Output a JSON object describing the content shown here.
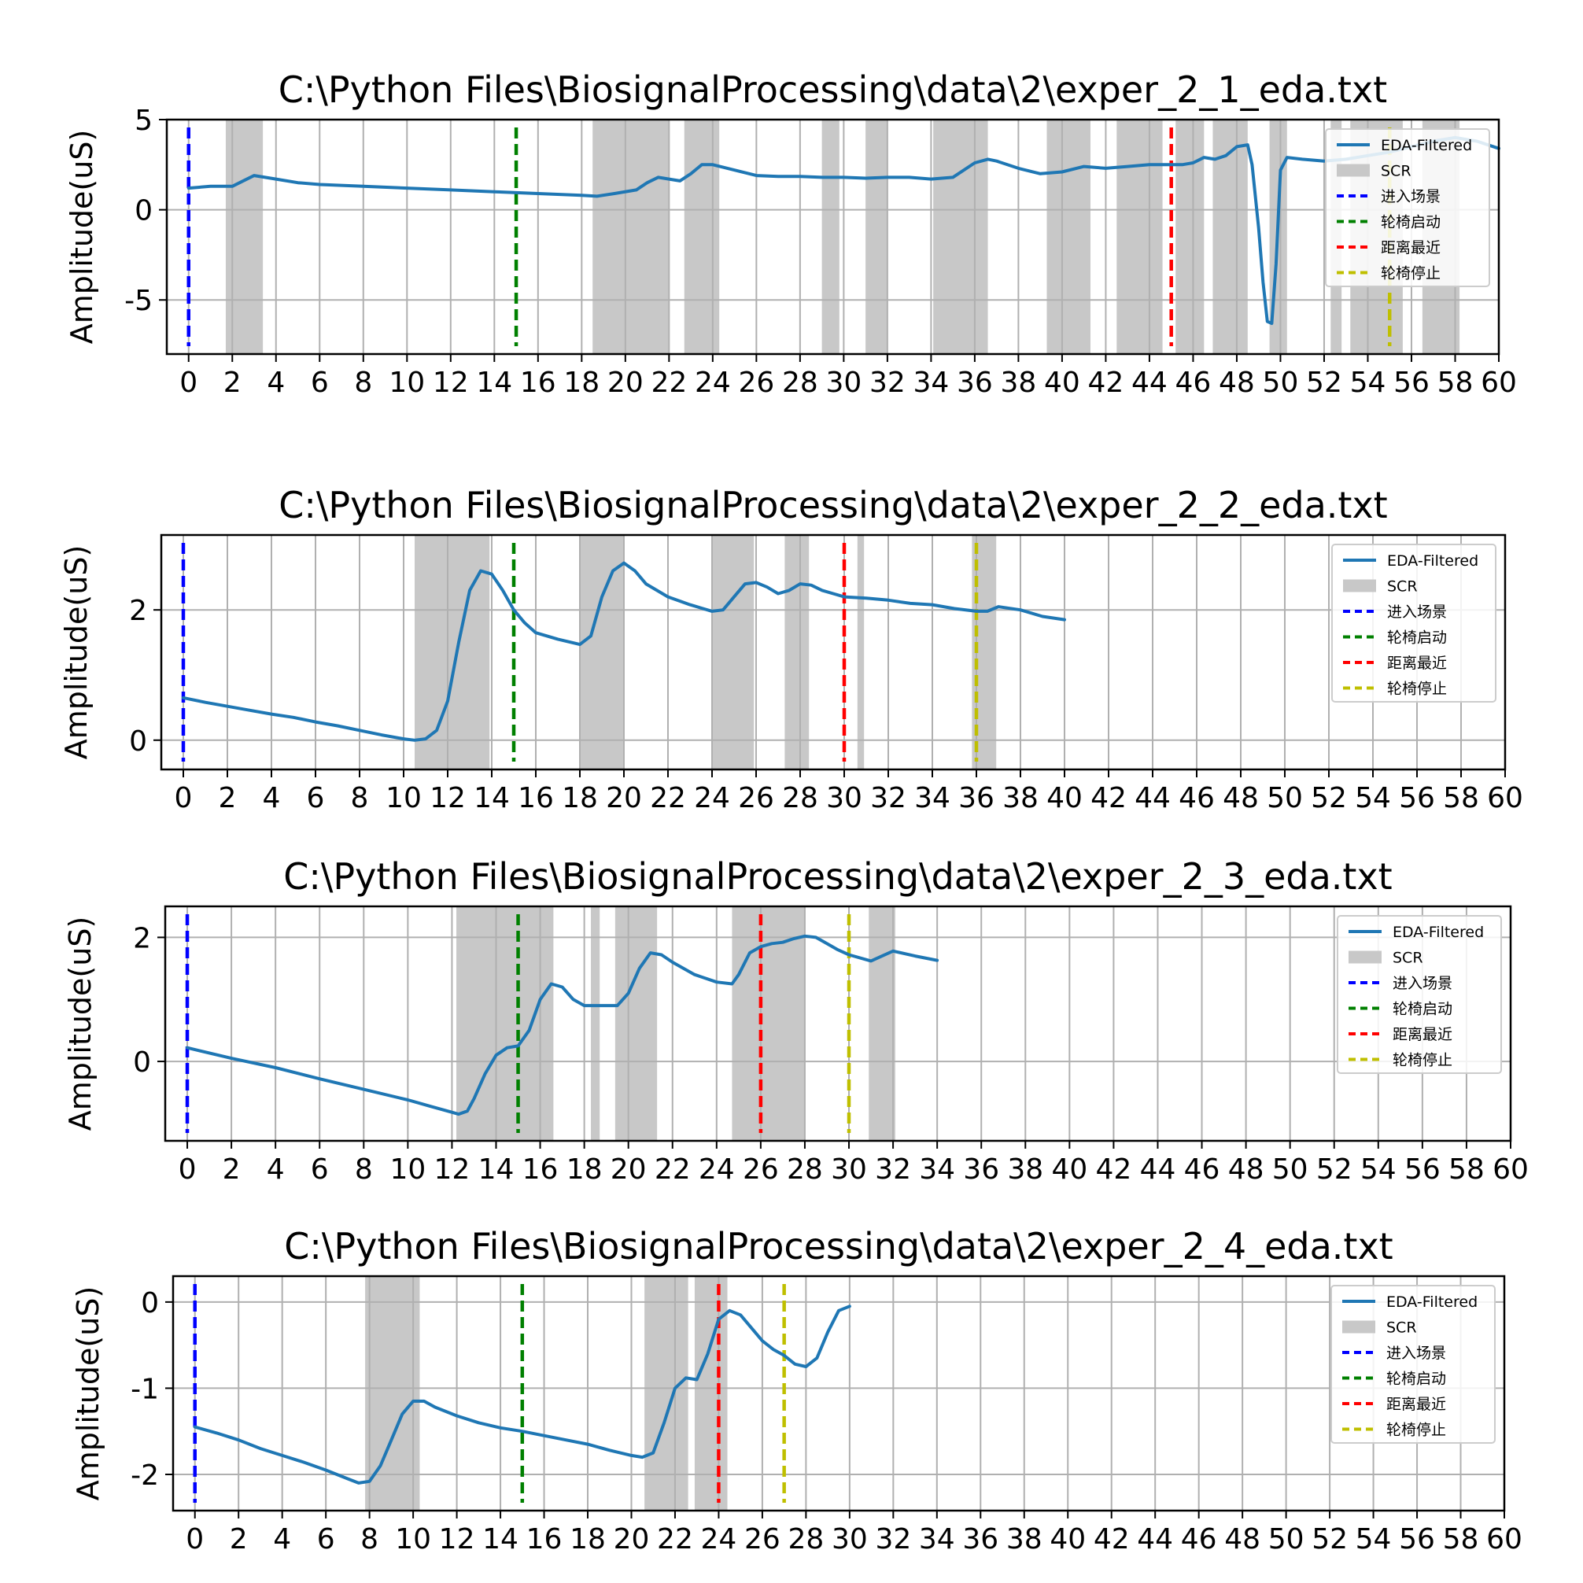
{
  "colors": {
    "eda": "#1f77b4",
    "scr": "#c8c8c8",
    "enter": "#0000ff",
    "start": "#008000",
    "nearest": "#ff0000",
    "stop": "#bfbf00",
    "grid": "#b0b0b0"
  },
  "legend_labels": [
    "EDA-Filtered",
    "SCR",
    "进入场景",
    "轮椅启动",
    "距离最近",
    "轮椅停止"
  ],
  "chart_data": [
    {
      "type": "line",
      "title": "C:\\Python Files\\BiosignalProcessing\\data\\2\\exper_2_1_eda.txt",
      "ylabel": "Amplitude(uS)",
      "xlim": [
        -1,
        60
      ],
      "ylim": [
        -8,
        5
      ],
      "xticks": [
        0,
        2,
        4,
        6,
        8,
        10,
        12,
        14,
        16,
        18,
        20,
        22,
        24,
        26,
        28,
        30,
        32,
        34,
        36,
        38,
        40,
        42,
        44,
        46,
        48,
        50,
        52,
        54,
        56,
        58,
        60
      ],
      "xtick_labels": [
        "0",
        "2",
        "4",
        "6",
        "8",
        "10",
        "12",
        "14",
        "16",
        "18",
        "20",
        "22",
        "24",
        "26",
        "28",
        "30",
        "32",
        "34",
        "36",
        "38",
        "40",
        "42",
        "44",
        "46",
        "48",
        "50",
        "52",
        "54",
        "56",
        "58",
        "60"
      ],
      "yticks": [
        5,
        0,
        -5
      ],
      "ytick_labels": [
        "5",
        "0",
        "-5"
      ],
      "grid": true,
      "legend_position": "top-right",
      "scr_regions": [
        [
          1.7,
          3.4
        ],
        [
          18.5,
          22
        ],
        [
          22.7,
          24.3
        ],
        [
          29,
          29.8
        ],
        [
          31,
          32
        ],
        [
          34.1,
          36.6
        ],
        [
          39.3,
          41.3
        ],
        [
          42.5,
          44.6
        ],
        [
          45.2,
          46.5
        ],
        [
          46.9,
          48.5
        ],
        [
          49.5,
          50.3
        ],
        [
          52.3,
          52.8
        ],
        [
          53.2,
          55.6
        ],
        [
          56.5,
          58.2
        ]
      ],
      "events": [
        {
          "label": "进入场景",
          "x": 0
        },
        {
          "label": "轮椅启动",
          "x": 15
        },
        {
          "label": "距离最近",
          "x": 45
        },
        {
          "label": "轮椅停止",
          "x": 55
        }
      ],
      "series": [
        {
          "name": "EDA-Filtered",
          "x": [
            0,
            1,
            2,
            2.5,
            3,
            3.5,
            4,
            5,
            6,
            8,
            10,
            12,
            14,
            16,
            18,
            18.7,
            19.5,
            20.5,
            21,
            21.5,
            22,
            22.5,
            23,
            23.5,
            24,
            25,
            26,
            27,
            28,
            29,
            30,
            31,
            32,
            33,
            34,
            35,
            36,
            36.6,
            37,
            38,
            39,
            40,
            41,
            42,
            43,
            44,
            45,
            45.5,
            46,
            46.5,
            47,
            47.5,
            48,
            48.5,
            48.7,
            49,
            49.2,
            49.4,
            49.6,
            49.8,
            50,
            50.3,
            51,
            52,
            53,
            54,
            55,
            56,
            57,
            58,
            59,
            60
          ],
          "y": [
            1.2,
            1.3,
            1.3,
            1.6,
            1.9,
            1.8,
            1.7,
            1.5,
            1.4,
            1.3,
            1.2,
            1.1,
            1.0,
            0.9,
            0.8,
            0.75,
            0.9,
            1.1,
            1.5,
            1.8,
            1.7,
            1.6,
            2.0,
            2.5,
            2.5,
            2.2,
            1.9,
            1.85,
            1.85,
            1.8,
            1.8,
            1.75,
            1.8,
            1.8,
            1.7,
            1.8,
            2.6,
            2.8,
            2.7,
            2.3,
            2.0,
            2.1,
            2.4,
            2.3,
            2.4,
            2.5,
            2.5,
            2.5,
            2.6,
            2.9,
            2.8,
            3.0,
            3.5,
            3.6,
            2.5,
            -1.0,
            -4.0,
            -6.2,
            -6.3,
            -3.0,
            2.2,
            2.9,
            2.8,
            2.7,
            2.8,
            3.0,
            3.2,
            3.5,
            3.8,
            4.0,
            3.8,
            3.4
          ]
        }
      ]
    },
    {
      "type": "line",
      "title": "C:\\Python Files\\BiosignalProcessing\\data\\2\\exper_2_2_eda.txt",
      "ylabel": "Amplitude(uS)",
      "xlim": [
        -1,
        60
      ],
      "ylim": [
        -0.45,
        3.15
      ],
      "xticks": [
        0,
        2,
        4,
        6,
        8,
        10,
        12,
        14,
        16,
        18,
        20,
        22,
        24,
        26,
        28,
        30,
        32,
        34,
        36,
        38,
        40,
        42,
        44,
        46,
        48,
        50,
        52,
        54,
        56,
        58,
        60
      ],
      "xtick_labels": [
        "0",
        "2",
        "4",
        "6",
        "8",
        "10",
        "12",
        "14",
        "16",
        "18",
        "20",
        "22",
        "24",
        "26",
        "28",
        "30",
        "32",
        "34",
        "36",
        "38",
        "40",
        "42",
        "44",
        "46",
        "48",
        "50",
        "52",
        "54",
        "56",
        "58",
        "60"
      ],
      "yticks": [
        2,
        0
      ],
      "ytick_labels": [
        "2",
        "0"
      ],
      "grid": true,
      "legend_position": "top-right",
      "scr_regions": [
        [
          10.5,
          13.9
        ],
        [
          18,
          20
        ],
        [
          24,
          25.9
        ],
        [
          27.3,
          28.4
        ],
        [
          30.6,
          30.9
        ],
        [
          35.8,
          36.9
        ]
      ],
      "events": [
        {
          "label": "进入场景",
          "x": 0
        },
        {
          "label": "轮椅启动",
          "x": 15
        },
        {
          "label": "距离最近",
          "x": 30
        },
        {
          "label": "轮椅停止",
          "x": 36
        }
      ],
      "series": [
        {
          "name": "EDA-Filtered",
          "x": [
            0,
            1,
            2,
            3,
            4,
            5,
            6,
            7,
            8,
            9,
            10,
            10.5,
            11,
            11.5,
            12,
            12.5,
            13,
            13.5,
            14,
            14.5,
            15,
            15.5,
            16,
            17,
            18,
            18.5,
            19,
            19.5,
            20,
            20.5,
            21,
            22,
            23,
            24,
            24.5,
            25,
            25.5,
            26,
            26.5,
            27,
            27.5,
            28,
            28.5,
            29,
            29.5,
            30,
            31,
            32,
            33,
            34,
            35,
            36,
            36.5,
            37,
            38,
            39,
            40
          ],
          "y": [
            0.65,
            0.58,
            0.52,
            0.46,
            0.4,
            0.35,
            0.28,
            0.22,
            0.15,
            0.08,
            0.02,
            0.0,
            0.02,
            0.15,
            0.6,
            1.5,
            2.3,
            2.6,
            2.55,
            2.3,
            2.0,
            1.8,
            1.65,
            1.55,
            1.47,
            1.6,
            2.2,
            2.6,
            2.72,
            2.6,
            2.4,
            2.2,
            2.08,
            1.98,
            2.0,
            2.2,
            2.4,
            2.42,
            2.35,
            2.25,
            2.3,
            2.4,
            2.38,
            2.3,
            2.25,
            2.2,
            2.18,
            2.15,
            2.1,
            2.08,
            2.02,
            1.98,
            1.98,
            2.05,
            2.0,
            1.9,
            1.85
          ]
        }
      ]
    },
    {
      "type": "line",
      "title": "C:\\Python Files\\BiosignalProcessing\\data\\2\\exper_2_3_eda.txt",
      "ylabel": "Amplitude(uS)",
      "xlim": [
        -1,
        60
      ],
      "ylim": [
        -1.28,
        2.5
      ],
      "xticks": [
        0,
        2,
        4,
        6,
        8,
        10,
        12,
        14,
        16,
        18,
        20,
        22,
        24,
        26,
        28,
        30,
        32,
        34,
        36,
        38,
        40,
        42,
        44,
        46,
        48,
        50,
        52,
        54,
        56,
        58,
        60
      ],
      "xtick_labels": [
        "0",
        "2",
        "4",
        "6",
        "8",
        "10",
        "12",
        "14",
        "16",
        "18",
        "20",
        "22",
        "24",
        "26",
        "28",
        "30",
        "32",
        "34",
        "36",
        "38",
        "40",
        "42",
        "44",
        "46",
        "48",
        "50",
        "52",
        "54",
        "56",
        "58",
        "60"
      ],
      "yticks": [
        2,
        0
      ],
      "ytick_labels": [
        "2",
        "0"
      ],
      "grid": true,
      "legend_position": "top-right",
      "scr_regions": [
        [
          12.2,
          16.6
        ],
        [
          18.3,
          18.7
        ],
        [
          19.4,
          21.3
        ],
        [
          24.7,
          28
        ],
        [
          30.9,
          32.1
        ]
      ],
      "events": [
        {
          "label": "进入场景",
          "x": 0
        },
        {
          "label": "轮椅启动",
          "x": 15
        },
        {
          "label": "距离最近",
          "x": 26
        },
        {
          "label": "轮椅停止",
          "x": 30
        }
      ],
      "series": [
        {
          "name": "EDA-Filtered",
          "x": [
            0,
            2,
            4,
            6,
            8,
            10,
            11,
            12,
            12.3,
            12.7,
            13,
            13.5,
            14,
            14.5,
            15,
            15.5,
            16,
            16.5,
            17,
            17.5,
            18,
            19,
            19.5,
            20,
            20.5,
            21,
            21.5,
            22,
            23,
            24,
            24.7,
            25,
            25.5,
            26,
            26.5,
            27,
            27.5,
            28,
            28.5,
            29,
            29.5,
            30,
            31,
            31.5,
            32,
            33,
            34
          ],
          "y": [
            0.22,
            0.05,
            -0.1,
            -0.28,
            -0.45,
            -0.62,
            -0.72,
            -0.82,
            -0.85,
            -0.8,
            -0.6,
            -0.2,
            0.1,
            0.22,
            0.25,
            0.5,
            1.0,
            1.25,
            1.2,
            1.0,
            0.9,
            0.9,
            0.9,
            1.1,
            1.5,
            1.75,
            1.72,
            1.6,
            1.4,
            1.28,
            1.25,
            1.4,
            1.75,
            1.85,
            1.9,
            1.92,
            1.98,
            2.02,
            2.0,
            1.9,
            1.8,
            1.72,
            1.62,
            1.7,
            1.78,
            1.7,
            1.63
          ]
        }
      ]
    },
    {
      "type": "line",
      "title": "C:\\Python Files\\BiosignalProcessing\\data\\2\\exper_2_4_eda.txt",
      "ylabel": "Amplitude(uS)",
      "xlim": [
        -1,
        60
      ],
      "ylim": [
        -2.42,
        0.3
      ],
      "xticks": [
        0,
        2,
        4,
        6,
        8,
        10,
        12,
        14,
        16,
        18,
        20,
        22,
        24,
        26,
        28,
        30,
        32,
        34,
        36,
        38,
        40,
        42,
        44,
        46,
        48,
        50,
        52,
        54,
        56,
        58,
        60
      ],
      "xtick_labels": [
        "0",
        "2",
        "4",
        "6",
        "8",
        "10",
        "12",
        "14",
        "16",
        "18",
        "20",
        "22",
        "24",
        "26",
        "28",
        "30",
        "32",
        "34",
        "36",
        "38",
        "40",
        "42",
        "44",
        "46",
        "48",
        "50",
        "52",
        "54",
        "56",
        "58",
        "60"
      ],
      "yticks": [
        0,
        -1,
        -2
      ],
      "ytick_labels": [
        "0",
        "-1",
        "-2"
      ],
      "grid": true,
      "legend_position": "top-right",
      "scr_regions": [
        [
          7.8,
          10.3
        ],
        [
          20.6,
          22.6
        ],
        [
          22.9,
          24.4
        ]
      ],
      "events": [
        {
          "label": "进入场景",
          "x": 0
        },
        {
          "label": "轮椅启动",
          "x": 15
        },
        {
          "label": "距离最近",
          "x": 24
        },
        {
          "label": "轮椅停止",
          "x": 27
        }
      ],
      "series": [
        {
          "name": "EDA-Filtered",
          "x": [
            0,
            1,
            2,
            3,
            4,
            5,
            6,
            7,
            7.5,
            8,
            8.5,
            9,
            9.5,
            10,
            10.5,
            11,
            12,
            13,
            14,
            15,
            16,
            17,
            18,
            19,
            20,
            20.5,
            21,
            21.5,
            22,
            22.5,
            23,
            23.5,
            24,
            24.5,
            25,
            25.5,
            26,
            26.5,
            27,
            27.5,
            28,
            28.5,
            29,
            29.5,
            30
          ],
          "y": [
            -1.45,
            -1.52,
            -1.6,
            -1.7,
            -1.78,
            -1.86,
            -1.95,
            -2.05,
            -2.1,
            -2.08,
            -1.9,
            -1.6,
            -1.3,
            -1.15,
            -1.15,
            -1.22,
            -1.32,
            -1.4,
            -1.46,
            -1.5,
            -1.55,
            -1.6,
            -1.65,
            -1.72,
            -1.78,
            -1.8,
            -1.75,
            -1.4,
            -1.0,
            -0.88,
            -0.9,
            -0.6,
            -0.2,
            -0.1,
            -0.15,
            -0.3,
            -0.45,
            -0.55,
            -0.62,
            -0.72,
            -0.75,
            -0.65,
            -0.35,
            -0.1,
            -0.05
          ]
        }
      ]
    }
  ]
}
